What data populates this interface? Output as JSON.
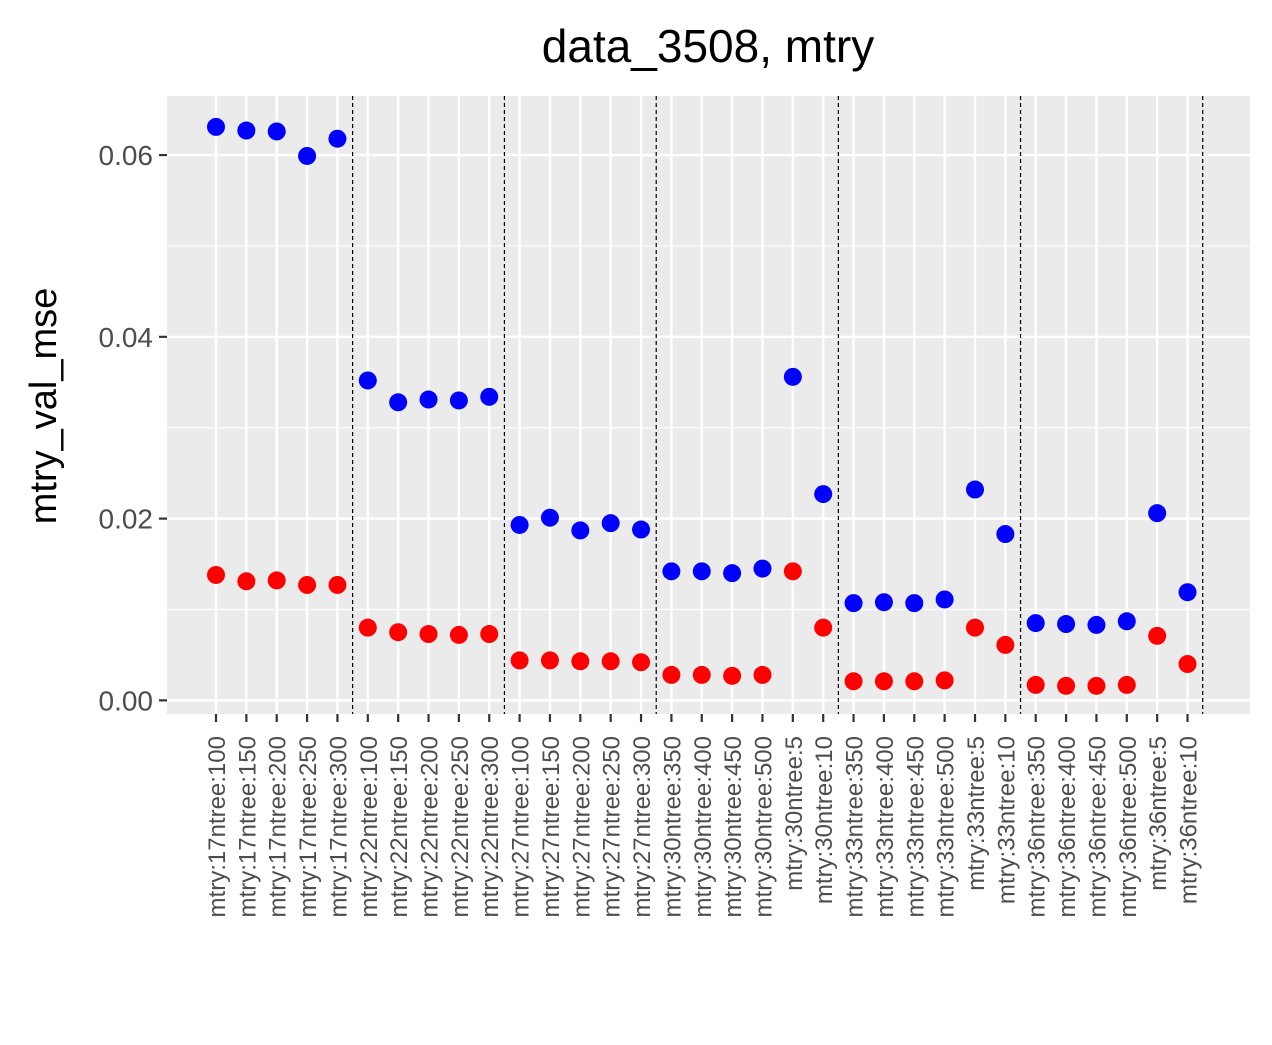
{
  "chart_data": {
    "type": "scatter",
    "title": "data_3508, mtry",
    "ylabel": "mtry_val_mse",
    "xlabel": "",
    "ylim": [
      -0.0015,
      0.0665
    ],
    "y_ticks": [
      0.0,
      0.02,
      0.04,
      0.06
    ],
    "y_tick_labels": [
      "0.00",
      "0.02",
      "0.04",
      "0.06"
    ],
    "grid": true,
    "colors": {
      "blue_series": "#0000ff",
      "red_series": "#ff0000",
      "panel": "#ebebeb",
      "grid": "#ffffff"
    },
    "categories": [
      "mtry:17ntree:100",
      "mtry:17ntree:150",
      "mtry:17ntree:200",
      "mtry:17ntree:250",
      "mtry:17ntree:300",
      "mtry:22ntree:100",
      "mtry:22ntree:150",
      "mtry:22ntree:200",
      "mtry:22ntree:250",
      "mtry:22ntree:300",
      "mtry:27ntree:100",
      "mtry:27ntree:150",
      "mtry:27ntree:200",
      "mtry:27ntree:250",
      "mtry:27ntree:300",
      "mtry:30ntree:350",
      "mtry:30ntree:400",
      "mtry:30ntree:450",
      "mtry:30ntree:500",
      "mtry:30ntree:5",
      "mtry:30ntree:10",
      "mtry:33ntree:350",
      "mtry:33ntree:400",
      "mtry:33ntree:450",
      "mtry:33ntree:500",
      "mtry:33ntree:5",
      "mtry:33ntree:10",
      "mtry:36ntree:350",
      "mtry:36ntree:400",
      "mtry:36ntree:450",
      "mtry:36ntree:500",
      "mtry:36ntree:5",
      "mtry:36ntree:10"
    ],
    "dashed_lines_after_category": [
      5,
      10,
      15,
      21,
      27,
      33
    ],
    "series": [
      {
        "color": "#0000ff",
        "values": [
          0.0631,
          0.0627,
          0.0626,
          0.0599,
          0.0618,
          0.0352,
          0.0328,
          0.0331,
          0.033,
          0.0334,
          0.0193,
          0.0201,
          0.0187,
          0.0195,
          0.0188,
          0.0142,
          0.0142,
          0.014,
          0.0145,
          0.0356,
          0.0227,
          0.0107,
          0.0108,
          0.0107,
          0.0111,
          0.0232,
          0.0183,
          0.0085,
          0.0084,
          0.0083,
          0.0087,
          0.0206,
          0.0119
        ]
      },
      {
        "color": "#ff0000",
        "values": [
          0.0138,
          0.0131,
          0.0132,
          0.0127,
          0.0127,
          0.008,
          0.0075,
          0.0073,
          0.0072,
          0.0073,
          0.0044,
          0.0044,
          0.0043,
          0.0043,
          0.0042,
          0.0028,
          0.0028,
          0.0027,
          0.0028,
          0.0142,
          0.008,
          0.0021,
          0.0021,
          0.0021,
          0.0022,
          0.008,
          0.0061,
          0.0017,
          0.0016,
          0.0016,
          0.0017,
          0.0071,
          0.004
        ]
      }
    ]
  }
}
